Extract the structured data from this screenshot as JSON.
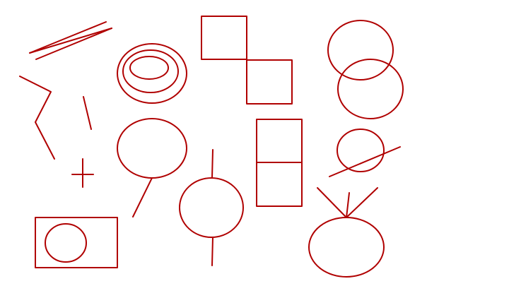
{
  "colors": {
    "background": "#ffffff",
    "stroke": "#b00000"
  },
  "shapes": {
    "double_lines": "double-line-sketch",
    "zigzag": "zigzag-line-sketch",
    "short_slash": "short-slash-line",
    "plus": "plus-sign-shape",
    "concentric_ellipses": "concentric-ellipses-shape",
    "ellipse_with_tail": "ellipse-with-tail-shape",
    "circle_on_stick": "circle-on-stick-shape",
    "rect_with_circle": "rectangle-with-circle-shape",
    "offset_squares": "offset-squares-shape",
    "stacked_squares": "stacked-squares-shape",
    "overlapping_ellipses": "overlapping-ellipses-shape",
    "circle_crossed_line": "circle-crossed-line-shape",
    "ellipse_with_v": "ellipse-with-v-shape"
  }
}
